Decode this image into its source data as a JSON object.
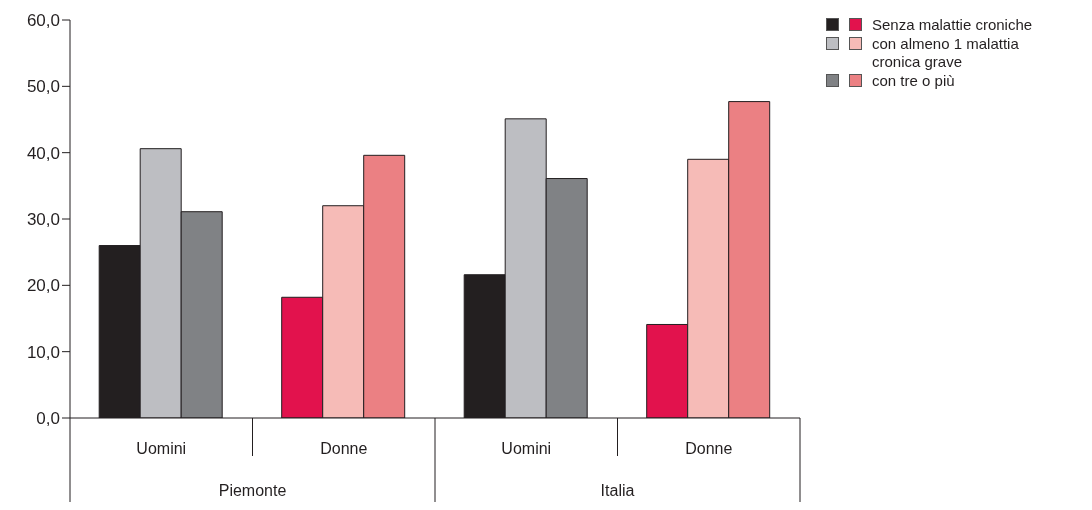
{
  "chart_data": {
    "type": "bar",
    "categories": [
      "Uomini",
      "Donne",
      "Uomini",
      "Donne"
    ],
    "annotations": [
      "Piemonte",
      "Italia"
    ],
    "series": [
      {
        "name": "Senza malattie croniche",
        "colors": [
          "#231f20",
          "#e2124d",
          "#231f20",
          "#e2124d"
        ],
        "values": [
          26.0,
          18.2,
          21.6,
          14.1
        ]
      },
      {
        "name": "con almeno 1 malattia cronica grave",
        "colors": [
          "#bdbec2",
          "#f6bbb7",
          "#bdbec2",
          "#f6bbb7"
        ],
        "values": [
          40.6,
          32.0,
          45.1,
          39.0
        ]
      },
      {
        "name": "con tre o più",
        "colors": [
          "#808285",
          "#eb8083",
          "#808285",
          "#eb8083"
        ],
        "values": [
          31.1,
          39.6,
          36.1,
          47.7
        ]
      }
    ],
    "ylim": [
      0,
      60
    ],
    "yticks": [
      {
        "value": 0,
        "label": "0,0"
      },
      {
        "value": 10,
        "label": "10,0"
      },
      {
        "value": 20,
        "label": "20,0"
      },
      {
        "value": 30,
        "label": "30,0"
      },
      {
        "value": 40,
        "label": "40,0"
      },
      {
        "value": 50,
        "label": "50,0"
      },
      {
        "value": 60,
        "label": "60,0"
      }
    ],
    "grid": false,
    "legend": "top right"
  }
}
